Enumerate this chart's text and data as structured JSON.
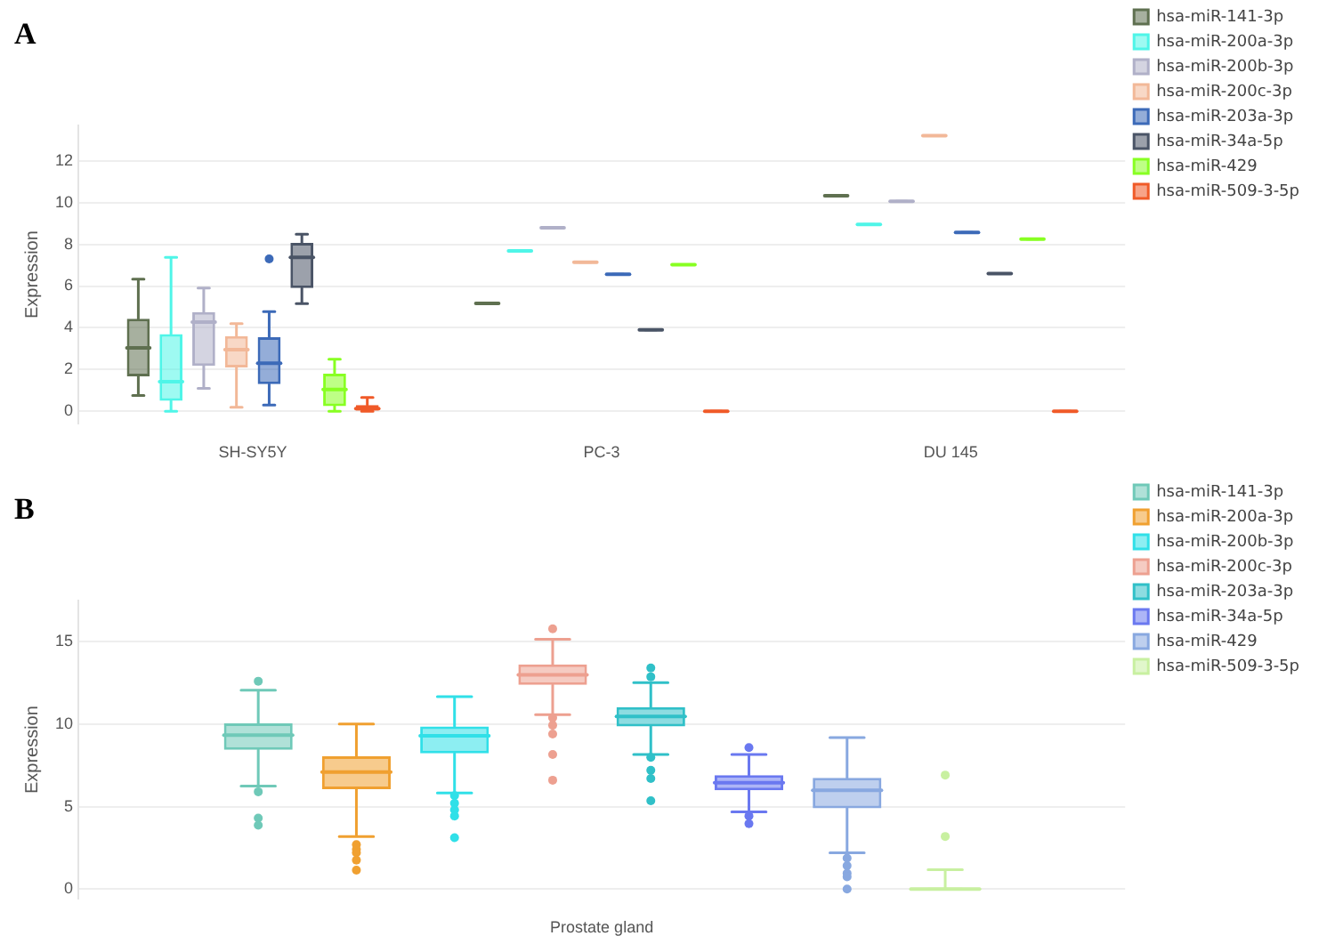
{
  "chart_data": [
    {
      "type": "box",
      "title": "A",
      "ylabel": "Expression",
      "categories": [
        "SH-SY5Y",
        "PC-3",
        "DU 145"
      ],
      "ylim": [
        -0.6,
        13.7
      ],
      "yticks": [
        0,
        2,
        4,
        6,
        8,
        10,
        12
      ],
      "grid": "y",
      "legend": "top right",
      "series": [
        {
          "name": "hsa-miR-141-3p",
          "color": "#5f7050",
          "boxes": [
            {
              "low": 0.76,
              "q1": 1.68,
              "median": 3.04,
              "q3": 4.43,
              "high": 6.33
            },
            {
              "low": 5.17,
              "q1": 5.17,
              "median": 5.17,
              "q3": 5.17,
              "high": 5.17
            },
            {
              "low": 10.32,
              "q1": 10.32,
              "median": 10.32,
              "q3": 10.32,
              "high": 10.32
            }
          ]
        },
        {
          "name": "hsa-miR-200a-3p",
          "color": "#4ff5e8",
          "boxes": [
            {
              "low": 0,
              "q1": 0.5,
              "median": 1.42,
              "q3": 3.7,
              "high": 7.37
            },
            {
              "low": 7.68,
              "q1": 7.68,
              "median": 7.68,
              "q3": 7.68,
              "high": 7.68
            },
            {
              "low": 8.95,
              "q1": 8.95,
              "median": 8.95,
              "q3": 8.95,
              "high": 8.95
            }
          ]
        },
        {
          "name": "hsa-miR-200b-3p",
          "color": "#b0b0c8",
          "boxes": [
            {
              "low": 1.1,
              "q1": 2.18,
              "median": 4.27,
              "q3": 4.75,
              "high": 5.9
            },
            {
              "low": 8.79,
              "q1": 8.79,
              "median": 8.79,
              "q3": 8.79,
              "high": 8.79
            },
            {
              "low": 10.06,
              "q1": 10.06,
              "median": 10.06,
              "q3": 10.06,
              "high": 10.06
            }
          ]
        },
        {
          "name": "hsa-miR-200c-3p",
          "color": "#f2b898",
          "boxes": [
            {
              "low": 0.2,
              "q1": 2.1,
              "median": 2.95,
              "q3": 3.6,
              "high": 4.2
            },
            {
              "low": 7.14,
              "q1": 7.14,
              "median": 7.14,
              "q3": 7.14,
              "high": 7.14
            },
            {
              "low": 13.2,
              "q1": 13.2,
              "median": 13.2,
              "q3": 13.2,
              "high": 13.2
            }
          ]
        },
        {
          "name": "hsa-miR-203a-3p",
          "color": "#3c6ab8",
          "boxes": [
            {
              "low": 0.3,
              "q1": 1.3,
              "median": 2.3,
              "q3": 3.55,
              "high": 4.78,
              "outliers": [
                7.3
              ]
            },
            {
              "low": 6.57,
              "q1": 6.57,
              "median": 6.57,
              "q3": 6.57,
              "high": 6.57
            },
            {
              "low": 8.57,
              "q1": 8.57,
              "median": 8.57,
              "q3": 8.57,
              "high": 8.57
            }
          ]
        },
        {
          "name": "hsa-miR-34a-5p",
          "color": "#4a5466",
          "boxes": [
            {
              "low": 5.16,
              "q1": 5.9,
              "median": 7.37,
              "q3": 8.07,
              "high": 8.48
            },
            {
              "low": 3.9,
              "q1": 3.9,
              "median": 3.9,
              "q3": 3.9,
              "high": 3.9
            },
            {
              "low": 6.6,
              "q1": 6.6,
              "median": 6.6,
              "q3": 6.6,
              "high": 6.6
            }
          ]
        },
        {
          "name": "hsa-miR-429",
          "color": "#88ff22",
          "boxes": [
            {
              "low": 0,
              "q1": 0.25,
              "median": 1.05,
              "q3": 1.8,
              "high": 2.5
            },
            {
              "low": 7.02,
              "q1": 7.02,
              "median": 7.02,
              "q3": 7.02,
              "high": 7.02
            },
            {
              "low": 8.25,
              "q1": 8.25,
              "median": 8.25,
              "q3": 8.25,
              "high": 8.25
            }
          ]
        },
        {
          "name": "hsa-miR-509-3-5p",
          "color": "#f05a28",
          "boxes": [
            {
              "low": 0,
              "q1": 0.03,
              "median": 0.13,
              "q3": 0.3,
              "high": 0.66
            },
            {
              "low": 0,
              "q1": 0,
              "median": 0,
              "q3": 0,
              "high": 0
            },
            {
              "low": 0,
              "q1": 0,
              "median": 0,
              "q3": 0,
              "high": 0
            }
          ]
        }
      ]
    },
    {
      "type": "box",
      "title": "B",
      "ylabel": "Expression",
      "categories": [
        "Prostate gland"
      ],
      "ylim": [
        -0.6,
        17.5
      ],
      "yticks": [
        0,
        5,
        10,
        15
      ],
      "grid": "y",
      "legend": "top right",
      "series": [
        {
          "name": "hsa-miR-141-3p",
          "color": "#6fc9b8",
          "boxes": [
            {
              "low": 6.24,
              "q1": 8.44,
              "median": 9.33,
              "q3": 10.04,
              "high": 12.06,
              "outliers": [
                12.6,
                5.9,
                4.3,
                3.87
              ]
            }
          ]
        },
        {
          "name": "hsa-miR-200a-3p",
          "color": "#f0a030",
          "boxes": [
            {
              "low": 3.19,
              "q1": 6.06,
              "median": 7.09,
              "q3": 8.05,
              "high": 10.0,
              "outliers": [
                2.7,
                2.4,
                2.2,
                1.75,
                1.15
              ]
            }
          ]
        },
        {
          "name": "hsa-miR-200b-3p",
          "color": "#30e0e8",
          "boxes": [
            {
              "low": 5.82,
              "q1": 8.23,
              "median": 9.29,
              "q3": 9.86,
              "high": 11.67,
              "outliers": [
                5.67,
                5.2,
                4.8,
                4.43,
                3.12
              ]
            }
          ]
        },
        {
          "name": "hsa-miR-200c-3p",
          "color": "#eda090",
          "boxes": [
            {
              "low": 10.57,
              "q1": 12.38,
              "median": 12.98,
              "q3": 13.62,
              "high": 15.14,
              "outliers": [
                15.78,
                10.39,
                9.93,
                9.4,
                8.16,
                6.6
              ]
            }
          ]
        },
        {
          "name": "hsa-miR-203a-3p",
          "color": "#30c0c8",
          "boxes": [
            {
              "low": 8.16,
              "q1": 9.86,
              "median": 10.46,
              "q3": 11.03,
              "high": 12.52,
              "outliers": [
                13.4,
                12.87,
                7.98,
                7.2,
                6.7,
                5.35
              ]
            }
          ]
        },
        {
          "name": "hsa-miR-34a-5p",
          "color": "#6a78f0",
          "boxes": [
            {
              "low": 4.68,
              "q1": 5.99,
              "median": 6.45,
              "q3": 6.91,
              "high": 8.16,
              "outliers": [
                8.58,
                4.43,
                3.97
              ]
            }
          ]
        },
        {
          "name": "hsa-miR-429",
          "color": "#88a8e0",
          "boxes": [
            {
              "low": 2.2,
              "q1": 4.89,
              "median": 5.99,
              "q3": 6.74,
              "high": 9.18,
              "outliers": [
                1.88,
                1.42,
                0.96,
                0.74,
                0
              ]
            }
          ]
        },
        {
          "name": "hsa-miR-509-3-5p",
          "color": "#c8f0a0",
          "boxes": [
            {
              "low": 0,
              "q1": 0,
              "median": 0,
              "q3": 0,
              "high": 1.17,
              "outliers": [
                3.19,
                6.91
              ]
            }
          ]
        }
      ]
    }
  ]
}
